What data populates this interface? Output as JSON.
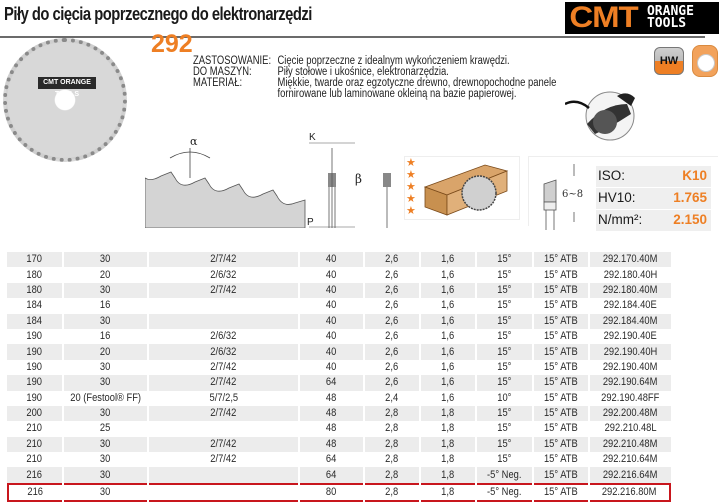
{
  "header": {
    "title": "Piły do cięcia poprzecznego do elektronarzędzi",
    "brand": {
      "name": "CMT",
      "sub_line1": "ORANGE",
      "sub_line2": "TOOLS",
      "accent_color": "#ee7f24"
    },
    "badges": {
      "hw": "HW"
    }
  },
  "product": {
    "series_number": "292",
    "blade_label": "CMT ORANGE TOOLS",
    "description": [
      {
        "label": "ZASTOSOWANIE:",
        "value": "Cięcie poprzeczne z idealnym wykończeniem krawędzi."
      },
      {
        "label": "DO MASZYN:",
        "value": "Piły stołowe i ukośnice, elektronarzędzia."
      },
      {
        "label": "MATERIAŁ:",
        "value": "Miękkie, twarde oraz egzotyczne drewno, drewnopochodne panele"
      },
      {
        "label": "",
        "value": "fornirowane lub laminowane okleiną na bazie papierowej."
      }
    ]
  },
  "diagram": {
    "alpha": "α",
    "beta": "β",
    "k": "K",
    "p": "P",
    "thickness_range": "6~8"
  },
  "rating": {
    "stars": 5,
    "star_glyph": "★"
  },
  "specs": [
    {
      "label": "ISO:",
      "value": "K10"
    },
    {
      "label": "HV10:",
      "value": "1.765"
    },
    {
      "label": "N/mm²:",
      "value": "2.150"
    }
  ],
  "table": {
    "rows": [
      [
        "170",
        "30",
        "2/7/42",
        "40",
        "2,6",
        "1,6",
        "15°",
        "15° ATB",
        "292.170.40M"
      ],
      [
        "180",
        "20",
        "2/6/32",
        "40",
        "2,6",
        "1,6",
        "15°",
        "15° ATB",
        "292.180.40H"
      ],
      [
        "180",
        "30",
        "2/7/42",
        "40",
        "2,6",
        "1,6",
        "15°",
        "15° ATB",
        "292.180.40M"
      ],
      [
        "184",
        "16",
        "",
        "40",
        "2,6",
        "1,6",
        "15°",
        "15° ATB",
        "292.184.40E"
      ],
      [
        "184",
        "30",
        "",
        "40",
        "2,6",
        "1,6",
        "15°",
        "15° ATB",
        "292.184.40M"
      ],
      [
        "190",
        "16",
        "2/6/32",
        "40",
        "2,6",
        "1,6",
        "15°",
        "15° ATB",
        "292.190.40E"
      ],
      [
        "190",
        "20",
        "2/6/32",
        "40",
        "2,6",
        "1,6",
        "15°",
        "15° ATB",
        "292.190.40H"
      ],
      [
        "190",
        "30",
        "2/7/42",
        "40",
        "2,6",
        "1,6",
        "15°",
        "15° ATB",
        "292.190.40M"
      ],
      [
        "190",
        "30",
        "2/7/42",
        "64",
        "2,6",
        "1,6",
        "15°",
        "15° ATB",
        "292.190.64M"
      ],
      [
        "190",
        "20 (Festool® FF)",
        "5/7/2,5",
        "48",
        "2,4",
        "1,6",
        "10°",
        "15° ATB",
        "292.190.48FF"
      ],
      [
        "200",
        "30",
        "2/7/42",
        "48",
        "2,8",
        "1,8",
        "15°",
        "15° ATB",
        "292.200.48M"
      ],
      [
        "210",
        "25",
        "",
        "48",
        "2,8",
        "1,8",
        "15°",
        "15° ATB",
        "292.210.48L"
      ],
      [
        "210",
        "30",
        "2/7/42",
        "48",
        "2,8",
        "1,8",
        "15°",
        "15° ATB",
        "292.210.48M"
      ],
      [
        "210",
        "30",
        "2/7/42",
        "64",
        "2,8",
        "1,8",
        "15°",
        "15° ATB",
        "292.210.64M"
      ],
      [
        "216",
        "30",
        "",
        "64",
        "2,8",
        "1,8",
        "-5° Neg.",
        "15° ATB",
        "292.216.64M"
      ],
      [
        "216",
        "30",
        "",
        "80",
        "2,8",
        "1,8",
        "-5° Neg.",
        "15° ATB",
        "292.216.80M"
      ]
    ],
    "shaded_rows": [
      0,
      2,
      4,
      6,
      8,
      10,
      12,
      14
    ],
    "highlighted_row": 15,
    "highlight_color": "#c8161d"
  }
}
